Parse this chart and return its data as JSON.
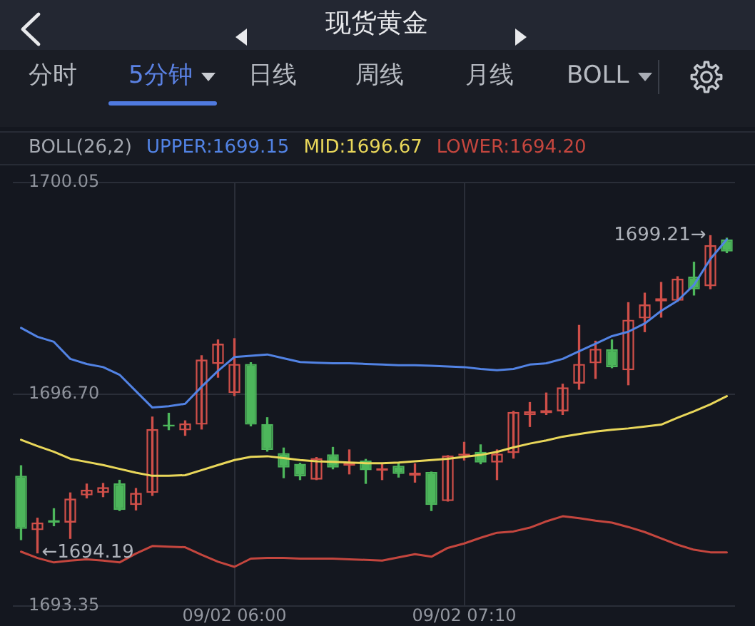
{
  "chart_data": {
    "type": "candlestick",
    "title": "现货黄金",
    "legend_title": "BOLL(26,2)",
    "categories": [
      null,
      null,
      null,
      null,
      null,
      null,
      null,
      null,
      null,
      null,
      null,
      null,
      null,
      "09/02 06:00",
      null,
      null,
      null,
      null,
      null,
      null,
      null,
      null,
      null,
      null,
      null,
      null,
      null,
      "09/02 07:10",
      null,
      null,
      null,
      null,
      null,
      null,
      null,
      null,
      null,
      null,
      null,
      null,
      null,
      null,
      null,
      null
    ],
    "ohlc": [
      [
        1695.41,
        1695.57,
        1694.4,
        1694.57
      ],
      [
        1694.55,
        1694.74,
        1694.19,
        1694.67
      ],
      [
        1694.71,
        1694.89,
        1694.62,
        1694.67
      ],
      [
        1694.67,
        1695.14,
        1694.42,
        1695.05
      ],
      [
        1695.1,
        1695.28,
        1695.06,
        1695.19
      ],
      [
        1695.14,
        1695.29,
        1695.08,
        1695.23
      ],
      [
        1695.29,
        1695.34,
        1694.86,
        1694.87
      ],
      [
        1694.95,
        1695.21,
        1694.87,
        1695.14
      ],
      [
        1695.14,
        1696.34,
        1695.1,
        1696.15
      ],
      [
        1696.22,
        1696.4,
        1696.14,
        1696.19
      ],
      [
        1696.13,
        1696.28,
        1696.05,
        1696.24
      ],
      [
        1696.22,
        1697.31,
        1696.15,
        1697.25
      ],
      [
        1697.18,
        1697.56,
        1696.97,
        1697.5
      ],
      [
        1696.72,
        1697.58,
        1696.68,
        1697.18
      ],
      [
        1697.18,
        1697.2,
        1696.2,
        1696.22
      ],
      [
        1696.23,
        1696.33,
        1695.8,
        1695.82
      ],
      [
        1695.77,
        1695.85,
        1695.38,
        1695.54
      ],
      [
        1695.6,
        1695.61,
        1695.35,
        1695.4
      ],
      [
        1695.35,
        1695.7,
        1695.35,
        1695.69
      ],
      [
        1695.75,
        1695.86,
        1695.52,
        1695.54
      ],
      [
        1695.57,
        1695.82,
        1695.44,
        1695.61
      ],
      [
        1695.65,
        1695.67,
        1695.29,
        1695.5
      ],
      [
        1695.49,
        1695.61,
        1695.35,
        1695.53
      ],
      [
        1695.57,
        1695.61,
        1695.39,
        1695.44
      ],
      [
        1695.41,
        1695.6,
        1695.31,
        1695.46
      ],
      [
        1695.47,
        1695.47,
        1694.86,
        1694.95
      ],
      [
        1695.01,
        1695.73,
        1695.01,
        1695.73
      ],
      [
        1695.73,
        1695.94,
        1695.66,
        1695.76
      ],
      [
        1695.79,
        1695.9,
        1695.6,
        1695.62
      ],
      [
        1695.62,
        1695.82,
        1695.35,
        1695.76
      ],
      [
        1695.77,
        1696.43,
        1695.69,
        1696.42
      ],
      [
        1696.37,
        1696.57,
        1696.19,
        1696.43
      ],
      [
        1696.4,
        1696.72,
        1696.38,
        1696.45
      ],
      [
        1696.43,
        1696.86,
        1696.38,
        1696.81
      ],
      [
        1696.87,
        1697.79,
        1696.78,
        1697.18
      ],
      [
        1697.19,
        1697.54,
        1696.95,
        1697.42
      ],
      [
        1697.41,
        1697.56,
        1697.12,
        1697.13
      ],
      [
        1697.08,
        1698.15,
        1696.85,
        1697.88
      ],
      [
        1697.9,
        1698.3,
        1697.69,
        1698.12
      ],
      [
        1698.17,
        1698.47,
        1697.92,
        1698.22
      ],
      [
        1698.18,
        1698.56,
        1698.17,
        1698.53
      ],
      [
        1698.56,
        1698.79,
        1698.27,
        1698.36
      ],
      [
        1698.41,
        1699.21,
        1698.37,
        1699.06
      ],
      [
        1699.15,
        1699.17,
        1698.94,
        1698.96
      ]
    ],
    "colors": [
      "#4db65b",
      "#cf4f49",
      "#4db65b",
      "#cf4f49",
      "#cf4f49",
      "#cf4f49",
      "#4db65b",
      "#cf4f49",
      "#cf4f49",
      "#4db65b",
      "#cf4f49",
      "#cf4f49",
      "#cf4f49",
      "#cf4f49",
      "#4db65b",
      "#4db65b",
      "#4db65b",
      "#4db65b",
      "#cf4f49",
      "#4db65b",
      "#cf4f49",
      "#4db65b",
      "#cf4f49",
      "#4db65b",
      "#cf4f49",
      "#4db65b",
      "#cf4f49",
      "#cf4f49",
      "#4db65b",
      "#cf4f49",
      "#cf4f49",
      "#cf4f49",
      "#cf4f49",
      "#cf4f49",
      "#cf4f49",
      "#cf4f49",
      "#4db65b",
      "#cf4f49",
      "#cf4f49",
      "#cf4f49",
      "#cf4f49",
      "#4db65b",
      "#cf4f49",
      "#4db65b"
    ],
    "series": [
      {
        "type": "line",
        "name": "UPPER:1699.15",
        "color": "#5283e4",
        "values": [
          1697.75,
          1697.61,
          1697.53,
          1697.26,
          1697.18,
          1697.13,
          1697.01,
          1696.75,
          1696.49,
          1696.51,
          1696.55,
          1696.82,
          1697.07,
          1697.29,
          1697.31,
          1697.33,
          1697.27,
          1697.21,
          1697.2,
          1697.19,
          1697.19,
          1697.18,
          1697.17,
          1697.16,
          1697.16,
          1697.15,
          1697.14,
          1697.13,
          1697.1,
          1697.08,
          1697.1,
          1697.17,
          1697.19,
          1697.26,
          1697.38,
          1697.5,
          1697.62,
          1697.69,
          1697.82,
          1698.02,
          1698.18,
          1698.43,
          1698.84,
          1699.15
        ]
      },
      {
        "type": "line",
        "name": "MID:1696.67",
        "color": "#e9d75a",
        "values": [
          1695.98,
          1695.88,
          1695.79,
          1695.68,
          1695.63,
          1695.58,
          1695.52,
          1695.46,
          1695.41,
          1695.41,
          1695.42,
          1695.5,
          1695.58,
          1695.66,
          1695.71,
          1695.72,
          1695.69,
          1695.66,
          1695.64,
          1695.63,
          1695.62,
          1695.61,
          1695.61,
          1695.62,
          1695.64,
          1695.66,
          1695.68,
          1695.71,
          1695.74,
          1695.79,
          1695.86,
          1695.92,
          1695.97,
          1696.03,
          1696.07,
          1696.11,
          1696.14,
          1696.16,
          1696.19,
          1696.22,
          1696.33,
          1696.43,
          1696.54,
          1696.67
        ]
      },
      {
        "type": "line",
        "name": "LOWER:1694.20",
        "color": "#c4463e",
        "values": [
          1694.21,
          1694.11,
          1694.04,
          1694.07,
          1694.09,
          1694.07,
          1694.04,
          1694.18,
          1694.3,
          1694.29,
          1694.28,
          1694.16,
          1694.05,
          1693.97,
          1694.1,
          1694.11,
          1694.11,
          1694.1,
          1694.1,
          1694.1,
          1694.09,
          1694.08,
          1694.07,
          1694.12,
          1694.17,
          1694.13,
          1694.27,
          1694.34,
          1694.43,
          1694.51,
          1694.53,
          1694.59,
          1694.69,
          1694.77,
          1694.74,
          1694.7,
          1694.67,
          1694.6,
          1694.52,
          1694.42,
          1694.32,
          1694.24,
          1694.2,
          1694.2
        ]
      }
    ],
    "ylim": [
      1693.35,
      1700.05
    ],
    "yticks": [
      1700.05,
      {
        "value": 1696.7,
        "label": "1696.70"
      },
      1693.35
    ],
    "grid": true,
    "marker": "none",
    "line_style": "solid",
    "annotations": [
      "分时",
      "5分钟",
      "日线",
      "周线",
      "月线",
      "BOLL",
      "1699.21→",
      {
        "text": "←1694.19",
        "y": 1694.19
      }
    ]
  }
}
